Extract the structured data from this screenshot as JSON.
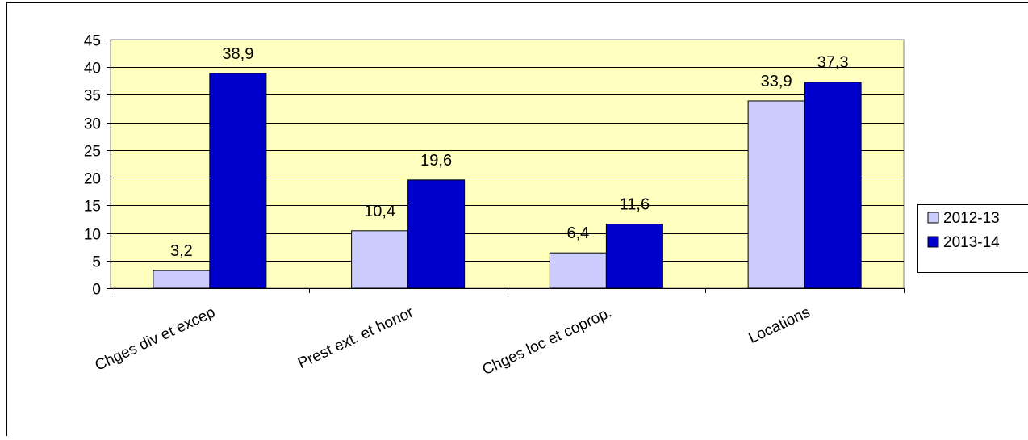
{
  "chart_data": {
    "type": "bar",
    "title": "",
    "xlabel": "",
    "ylabel": "",
    "categories": [
      "Chges div et excep",
      "Prest ext. et honor",
      "Chges loc et coprop.",
      "Locations"
    ],
    "series": [
      {
        "name": "2012-13",
        "values": [
          3.2,
          10.4,
          6.4,
          33.9
        ],
        "labels": [
          "3,2",
          "10,4",
          "6,4",
          "33,9"
        ]
      },
      {
        "name": "2013-14",
        "values": [
          38.9,
          19.6,
          11.6,
          37.3
        ],
        "labels": [
          "38,9",
          "19,6",
          "11,6",
          "37,3"
        ]
      }
    ],
    "ylim": [
      0,
      45
    ],
    "yticks": [
      0,
      5,
      10,
      15,
      20,
      25,
      30,
      35,
      40,
      45
    ],
    "grid": true,
    "legend_position": "right",
    "colors": {
      "plot_background": "#FFFFC0",
      "series": [
        "#CCCCFF",
        "#0000CC"
      ],
      "gridlines": "#000000"
    }
  }
}
